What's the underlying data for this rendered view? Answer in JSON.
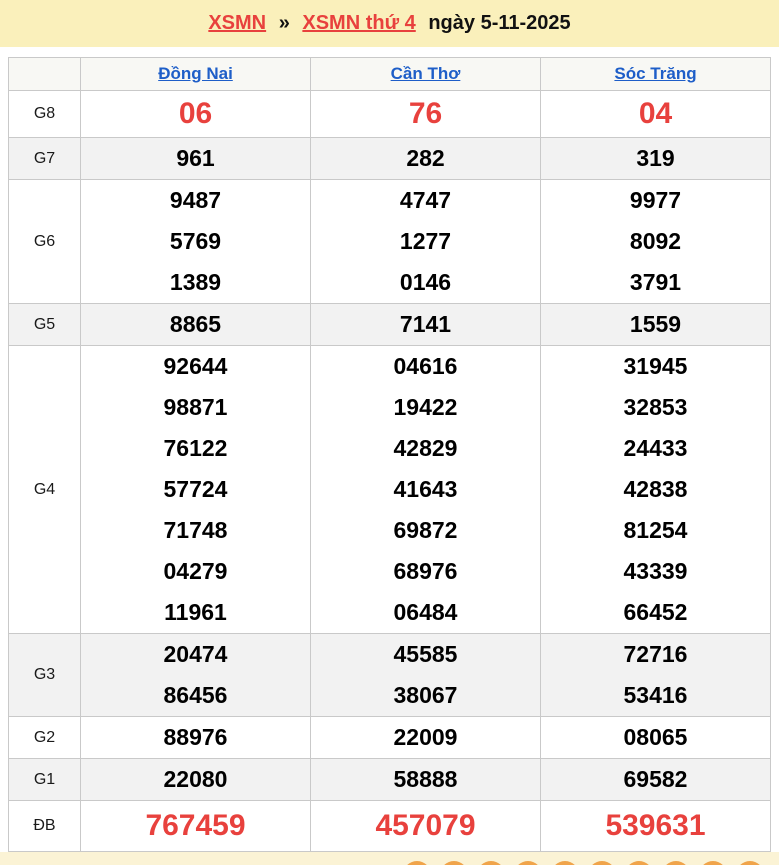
{
  "header": {
    "link1": "XSMN",
    "separator": "»",
    "link2": "XSMN thứ 4",
    "suffix": "ngày 5-11-2025",
    "accent_color": "#e8413d"
  },
  "table": {
    "border_color": "#c9c9c9",
    "header_bg": "#f8f8f4",
    "shaded_row_bg": "#f2f2f2",
    "number_color": "#000000",
    "highlight_color": "#e8413d",
    "link_color": "#1e5ec8",
    "columns": [
      "Đồng Nai",
      "Cần Thơ",
      "Sóc Trăng"
    ],
    "rows": [
      {
        "label": "G8",
        "highlight": true,
        "values": [
          [
            "06"
          ],
          [
            "76"
          ],
          [
            "04"
          ]
        ]
      },
      {
        "label": "G7",
        "highlight": false,
        "values": [
          [
            "961"
          ],
          [
            "282"
          ],
          [
            "319"
          ]
        ]
      },
      {
        "label": "G6",
        "highlight": false,
        "values": [
          [
            "9487",
            "5769",
            "1389"
          ],
          [
            "4747",
            "1277",
            "0146"
          ],
          [
            "9977",
            "8092",
            "3791"
          ]
        ]
      },
      {
        "label": "G5",
        "highlight": false,
        "values": [
          [
            "8865"
          ],
          [
            "7141"
          ],
          [
            "1559"
          ]
        ]
      },
      {
        "label": "G4",
        "highlight": false,
        "values": [
          [
            "92644",
            "98871",
            "76122",
            "57724",
            "71748",
            "04279",
            "11961"
          ],
          [
            "04616",
            "19422",
            "42829",
            "41643",
            "69872",
            "68976",
            "06484"
          ],
          [
            "31945",
            "32853",
            "24433",
            "42838",
            "81254",
            "43339",
            "66452"
          ]
        ]
      },
      {
        "label": "G3",
        "highlight": false,
        "values": [
          [
            "20474",
            "86456"
          ],
          [
            "45585",
            "38067"
          ],
          [
            "72716",
            "53416"
          ]
        ]
      },
      {
        "label": "G2",
        "highlight": false,
        "values": [
          [
            "88976"
          ],
          [
            "22009"
          ],
          [
            "08065"
          ]
        ]
      },
      {
        "label": "G1",
        "highlight": false,
        "values": [
          [
            "22080"
          ],
          [
            "58888"
          ],
          [
            "69582"
          ]
        ]
      },
      {
        "label": "ĐB",
        "highlight": true,
        "values": [
          [
            "767459"
          ],
          [
            "457079"
          ],
          [
            "539631"
          ]
        ]
      }
    ]
  },
  "footer": {
    "ball_color": "#f0a44a",
    "ball_count": 10
  }
}
